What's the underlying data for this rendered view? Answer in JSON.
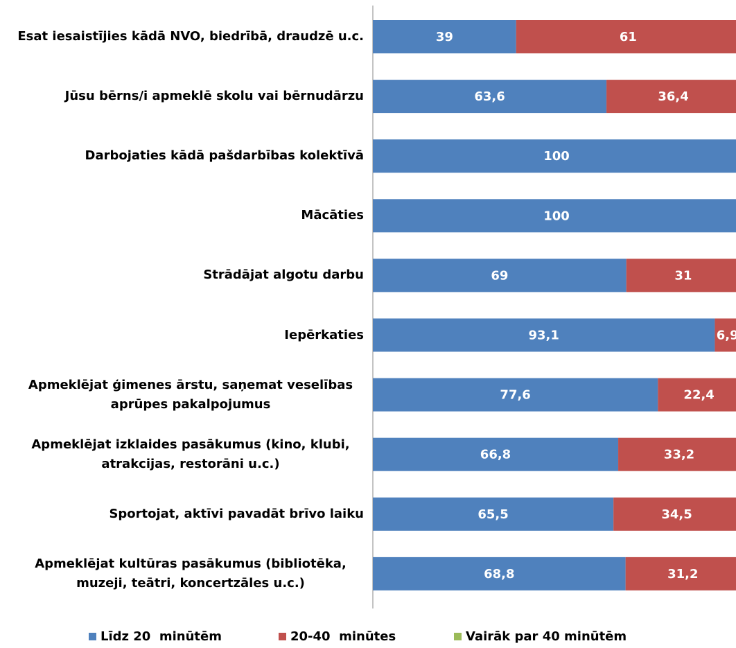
{
  "chart_data": {
    "type": "stacked-bar",
    "orientation": "horizontal",
    "categories": [
      "Esat iesaistījies kādā NVO, biedrībā, draudzē u.c.",
      "Jūsu bērns/i apmeklē skolu vai bērnudārzu",
      "Darbojaties kādā pašdarbības kolektīvā",
      "Mācāties",
      "Strādājat algotu darbu",
      "Iepērkaties",
      "Apmeklējat ģimenes ārstu, saņemat veselības aprūpes pakalpojumus",
      "Apmeklējat izklaides pasākumus (kino, klubi, atrakcijas, restorāni u.c.)",
      "Sportojat, aktīvi pavadāt brīvo laiku",
      "Apmeklējat kultūras pasākumus (bibliotēka, muzeji, teātri, koncertzāles u.c.)"
    ],
    "series": [
      {
        "name": "Līdz 20  minūtēm",
        "color": "#4f81bd",
        "values": [
          39,
          63.6,
          100,
          100,
          69,
          93.1,
          77.6,
          66.8,
          65.5,
          68.8
        ],
        "value_labels": [
          "39",
          "63,6",
          "100",
          "100",
          "69",
          "93,1",
          "77,6",
          "66,8",
          "65,5",
          "68,8"
        ]
      },
      {
        "name": "20-40  minūtes",
        "color": "#c0504d",
        "values": [
          61,
          36.4,
          null,
          null,
          31,
          6.9,
          22.4,
          33.2,
          34.5,
          31.2
        ],
        "value_labels": [
          "61",
          "36,4",
          null,
          null,
          "31",
          "6,9",
          "22,4",
          "33,2",
          "34,5",
          "31,2"
        ]
      },
      {
        "name": "Vairāk par 40 minūtēm",
        "color": "#9bbb59",
        "values": [
          null,
          null,
          null,
          null,
          null,
          null,
          null,
          null,
          null,
          null
        ],
        "value_labels": [
          null,
          null,
          null,
          null,
          null,
          null,
          null,
          null,
          null,
          null
        ]
      }
    ],
    "xlim": [
      0,
      100
    ],
    "legend": "bottom"
  }
}
